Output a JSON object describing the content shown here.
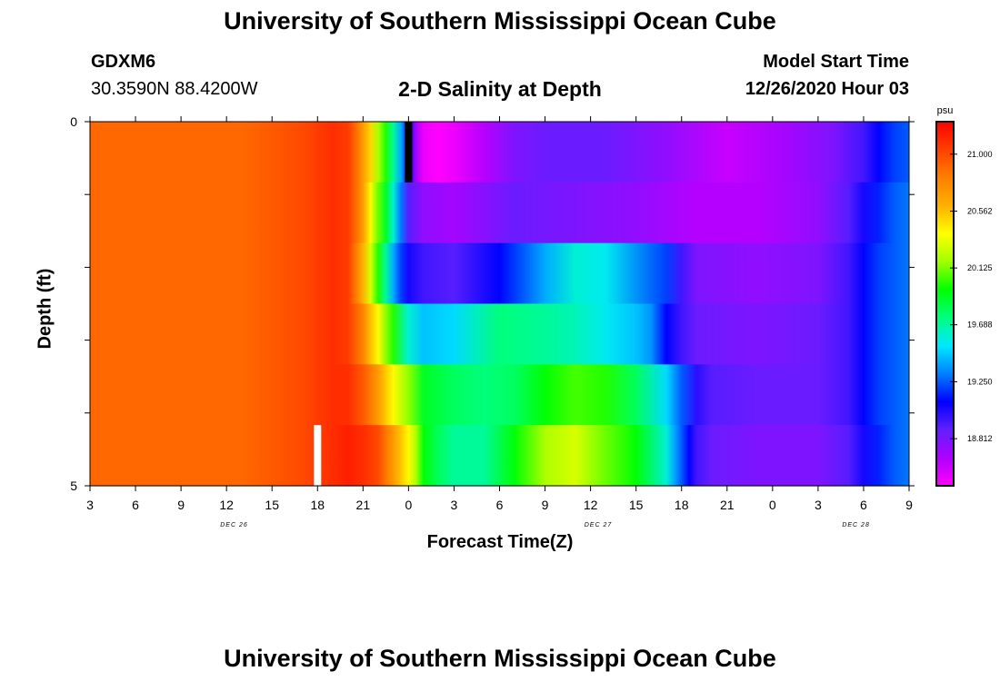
{
  "page": {
    "title_top": "University of Southern Mississippi Ocean Cube",
    "title_bottom": "University of Southern Mississippi Ocean Cube",
    "station_id": "GDXM6",
    "station_coords": "30.3590N 88.4200W",
    "plot_title": "2-D Salinity at Depth",
    "model_start_label": "Model Start Time",
    "model_start_value": "12/26/2020 Hour 03"
  },
  "chart_data": {
    "type": "heatmap",
    "title": "2-D Salinity at Depth",
    "xlabel": "Forecast Time(Z)",
    "ylabel": "Depth (ft)",
    "x_tick_labels": [
      "3",
      "6",
      "9",
      "12",
      "15",
      "18",
      "21",
      "0",
      "3",
      "6",
      "9",
      "12",
      "15",
      "18",
      "21",
      "0",
      "3",
      "6",
      "9"
    ],
    "x_range_hours": [
      0,
      54
    ],
    "day_labels": [
      "DEC 26",
      "DEC 27",
      "DEC 28"
    ],
    "y_tick_labels": [
      "0",
      "5"
    ],
    "ylim": [
      0,
      5
    ],
    "colorbar": {
      "unit": "psu",
      "tick_labels": [
        "21.000",
        "20.562",
        "20.125",
        "19.688",
        "19.250",
        "18.812"
      ],
      "range": [
        18.45,
        21.25
      ],
      "colors": [
        "#ff00ff",
        "#b000ff",
        "#6020ff",
        "#0000ff",
        "#0080ff",
        "#00e8ff",
        "#00ff80",
        "#00ff00",
        "#a0ff00",
        "#ffff00",
        "#ffb000",
        "#ff8000",
        "#ff4000",
        "#ff0000"
      ]
    },
    "depth_layers": [
      {
        "time_hours": [
          0,
          10,
          14,
          16,
          17,
          17.5,
          18,
          18.5,
          19,
          19.5,
          20,
          20.5,
          21,
          21.5,
          22,
          23,
          24,
          26,
          28,
          30,
          34,
          38,
          42,
          46,
          49,
          51,
          52,
          53,
          54
        ],
        "salinity": [
          20.9,
          20.9,
          21.0,
          21.1,
          21.05,
          20.9,
          20.7,
          20.5,
          20.2,
          20.0,
          19.7,
          19.4,
          19.1,
          18.7,
          18.5,
          18.45,
          18.5,
          18.65,
          18.8,
          18.85,
          18.85,
          18.75,
          18.6,
          18.7,
          18.8,
          18.95,
          19.1,
          19.2,
          19.25
        ]
      },
      {
        "time_hours": [
          0,
          10,
          14,
          16,
          17,
          17.5,
          18,
          18.5,
          19,
          19.5,
          20,
          20.5,
          21,
          22,
          24,
          28,
          32,
          36,
          40,
          44,
          48,
          50,
          51,
          52,
          53,
          54
        ],
        "salinity": [
          20.9,
          20.9,
          21.0,
          21.1,
          21.05,
          20.9,
          20.7,
          20.4,
          20.1,
          19.9,
          19.6,
          19.3,
          18.9,
          18.75,
          18.7,
          18.85,
          18.8,
          18.75,
          18.65,
          18.65,
          18.75,
          18.9,
          19.05,
          19.15,
          19.25,
          19.3
        ]
      },
      {
        "time_hours": [
          0,
          10,
          14,
          16,
          17,
          17.5,
          18,
          18.5,
          19,
          19.5,
          20,
          20.5,
          21,
          22,
          24,
          27,
          30,
          32,
          34,
          38,
          39,
          40,
          44,
          48,
          50,
          51,
          52,
          53,
          54
        ],
        "salinity": [
          20.9,
          20.9,
          21.0,
          21.1,
          21.05,
          20.85,
          20.6,
          20.3,
          20.0,
          19.7,
          19.4,
          19.2,
          19.05,
          18.95,
          18.9,
          19.1,
          19.4,
          19.6,
          19.55,
          19.2,
          18.95,
          18.8,
          18.75,
          18.8,
          18.95,
          19.1,
          19.2,
          19.25,
          19.3
        ]
      },
      {
        "time_hours": [
          0,
          10,
          14,
          16,
          17,
          18,
          19,
          20,
          21,
          22,
          24,
          27,
          30,
          32,
          34,
          36,
          37,
          38,
          39,
          40,
          44,
          48,
          50,
          51,
          52,
          53,
          54
        ],
        "salinity": [
          20.9,
          20.9,
          21.0,
          21.1,
          21.05,
          20.8,
          20.4,
          20.0,
          19.6,
          19.45,
          19.5,
          19.75,
          19.7,
          19.65,
          19.55,
          19.45,
          19.35,
          19.1,
          18.95,
          18.85,
          18.8,
          18.85,
          18.95,
          19.1,
          19.2,
          19.25,
          19.3
        ]
      },
      {
        "time_hours": [
          0,
          10,
          14,
          16,
          17,
          18,
          19,
          20,
          21,
          22,
          24,
          26,
          28,
          30,
          32,
          34,
          36,
          38,
          39,
          40,
          41,
          44,
          48,
          50,
          51,
          52,
          53,
          54
        ],
        "salinity": [
          20.9,
          20.9,
          21.0,
          21.1,
          21.1,
          20.95,
          20.7,
          20.4,
          20.15,
          19.9,
          19.8,
          19.75,
          19.8,
          19.95,
          20.05,
          20.0,
          19.8,
          19.5,
          19.25,
          19.0,
          18.9,
          18.85,
          18.85,
          18.95,
          19.1,
          19.2,
          19.25,
          19.3
        ]
      },
      {
        "time_hours": [
          0,
          10,
          14,
          16,
          17,
          18,
          19,
          19.5,
          20,
          20.5,
          21,
          21.5,
          22,
          23,
          24,
          26,
          28,
          30,
          32,
          34,
          36,
          38,
          38.5,
          39,
          39.5,
          40,
          41,
          44,
          48,
          50,
          51,
          52,
          53,
          54
        ],
        "salinity": [
          20.9,
          20.9,
          21.0,
          21.1,
          21.15,
          21.1,
          21.0,
          20.85,
          20.7,
          20.55,
          20.4,
          20.2,
          19.95,
          19.8,
          19.7,
          19.7,
          19.95,
          20.2,
          20.3,
          20.1,
          19.95,
          19.6,
          19.4,
          19.25,
          19.1,
          18.95,
          18.85,
          18.8,
          18.8,
          18.9,
          19.05,
          19.15,
          19.25,
          19.3
        ]
      }
    ],
    "markers": [
      {
        "type": "black-bar",
        "time_hours": 21,
        "layer": 0
      },
      {
        "type": "white-bar",
        "time_hours": 15,
        "layer": 5
      }
    ]
  }
}
